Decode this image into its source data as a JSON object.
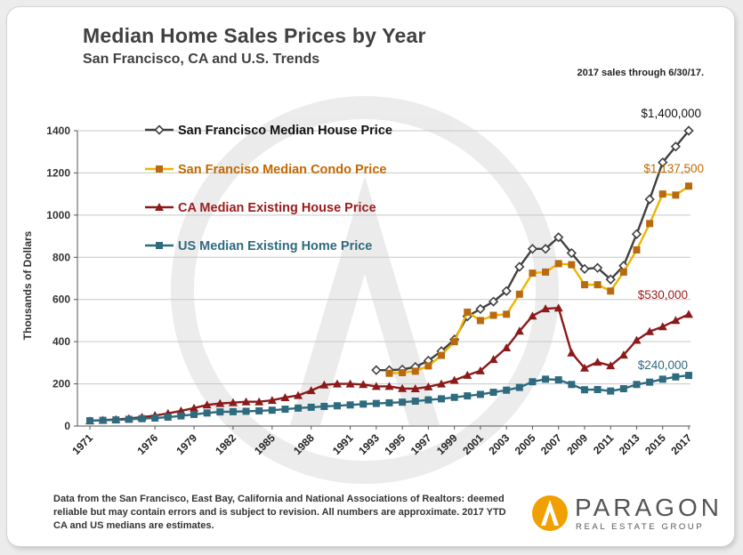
{
  "header": {
    "title": "Median Home Sales Prices by Year",
    "subtitle": "San Francisco, CA and U.S. Trends",
    "note": "2017 sales through 6/30/17."
  },
  "footer": {
    "text": "Data from the San Francisco, East Bay, California and National Associations of Realtors: deemed reliable but may contain errors and is subject to revision. All numbers are approximate. 2017 YTD CA and US medians are estimates."
  },
  "logo": {
    "name": "PARAGON",
    "tagline": "REAL ESTATE GROUP",
    "colors": {
      "accent": "#f0a000",
      "text": "#555555"
    }
  },
  "chart_data": {
    "type": "line",
    "ylabel": "Thousands of Dollars",
    "ylim": [
      0,
      1400
    ],
    "yticks": [
      0,
      200,
      400,
      600,
      800,
      1000,
      1200,
      1400
    ],
    "xlim": [
      1971,
      2017
    ],
    "xticks": [
      "1971",
      "1976",
      "1979",
      "1982",
      "1985",
      "1988",
      "1991",
      "1993",
      "1995",
      "1997",
      "1999",
      "2001",
      "2003",
      "2005",
      "2007",
      "2009",
      "2011",
      "2013",
      "2015",
      "2017"
    ],
    "grid": true,
    "legend_position": "top-left",
    "series": [
      {
        "name": "San Francisco Median House Price",
        "color": "#404040",
        "marker": "diamond",
        "x": [
          1993,
          1994,
          1995,
          1996,
          1997,
          1998,
          1999,
          2000,
          2001,
          2002,
          2003,
          2004,
          2005,
          2006,
          2007,
          2008,
          2009,
          2010,
          2011,
          2012,
          2013,
          2014,
          2015,
          2016,
          2017
        ],
        "values": [
          265,
          265,
          268,
          280,
          310,
          355,
          410,
          520,
          555,
          590,
          640,
          755,
          840,
          840,
          895,
          820,
          745,
          750,
          695,
          760,
          910,
          1075,
          1250,
          1325,
          1400
        ],
        "end_label": "$1,400,000"
      },
      {
        "name": "San Franciso Median Condo Price",
        "color": "#f0b400",
        "marker_color": "#b86a10",
        "marker": "square",
        "x": [
          1994,
          1995,
          1996,
          1997,
          1998,
          1999,
          2000,
          2001,
          2002,
          2003,
          2004,
          2005,
          2006,
          2007,
          2008,
          2009,
          2010,
          2011,
          2012,
          2013,
          2014,
          2015,
          2016,
          2017
        ],
        "values": [
          250,
          253,
          260,
          285,
          335,
          400,
          540,
          500,
          525,
          530,
          625,
          725,
          730,
          770,
          765,
          670,
          670,
          640,
          730,
          835,
          960,
          1100,
          1095,
          1137.5
        ],
        "end_label": "$1,137,500"
      },
      {
        "name": "CA Median Existing House Price",
        "color": "#8b1a1a",
        "marker": "triangle",
        "x": [
          1971,
          1972,
          1973,
          1974,
          1975,
          1976,
          1977,
          1978,
          1979,
          1980,
          1981,
          1982,
          1983,
          1984,
          1985,
          1986,
          1987,
          1988,
          1989,
          1990,
          1991,
          1992,
          1993,
          1994,
          1995,
          1996,
          1997,
          1998,
          1999,
          2000,
          2001,
          2002,
          2003,
          2004,
          2005,
          2006,
          2007,
          2008,
          2009,
          2010,
          2011,
          2012,
          2013,
          2014,
          2015,
          2016,
          2017
        ],
        "values": [
          25,
          28,
          31,
          36,
          42,
          50,
          60,
          72,
          85,
          100,
          107,
          111,
          115,
          115,
          122,
          135,
          145,
          168,
          195,
          200,
          200,
          197,
          188,
          188,
          178,
          177,
          186,
          200,
          217,
          241,
          262,
          316,
          371,
          450,
          522,
          556,
          560,
          347,
          275,
          303,
          286,
          337,
          407,
          448,
          471,
          501,
          530
        ],
        "end_label": "$530,000"
      },
      {
        "name": "US Median Existing Home Price",
        "color": "#2e6b7e",
        "marker": "square",
        "x": [
          1971,
          1972,
          1973,
          1974,
          1975,
          1976,
          1977,
          1978,
          1979,
          1980,
          1981,
          1982,
          1983,
          1984,
          1985,
          1986,
          1987,
          1988,
          1989,
          1990,
          1991,
          1992,
          1993,
          1994,
          1995,
          1996,
          1997,
          1998,
          1999,
          2000,
          2001,
          2002,
          2003,
          2004,
          2005,
          2006,
          2007,
          2008,
          2009,
          2010,
          2011,
          2012,
          2013,
          2014,
          2015,
          2016,
          2017
        ],
        "values": [
          25,
          27,
          29,
          32,
          35,
          38,
          42,
          48,
          55,
          62,
          67,
          68,
          70,
          72,
          75,
          80,
          85,
          89,
          93,
          96,
          100,
          104,
          107,
          110,
          113,
          118,
          124,
          129,
          136,
          143,
          150,
          160,
          170,
          183,
          210,
          222,
          219,
          197,
          172,
          173,
          166,
          177,
          197,
          208,
          222,
          233,
          240
        ],
        "end_label": "$240,000"
      }
    ]
  }
}
